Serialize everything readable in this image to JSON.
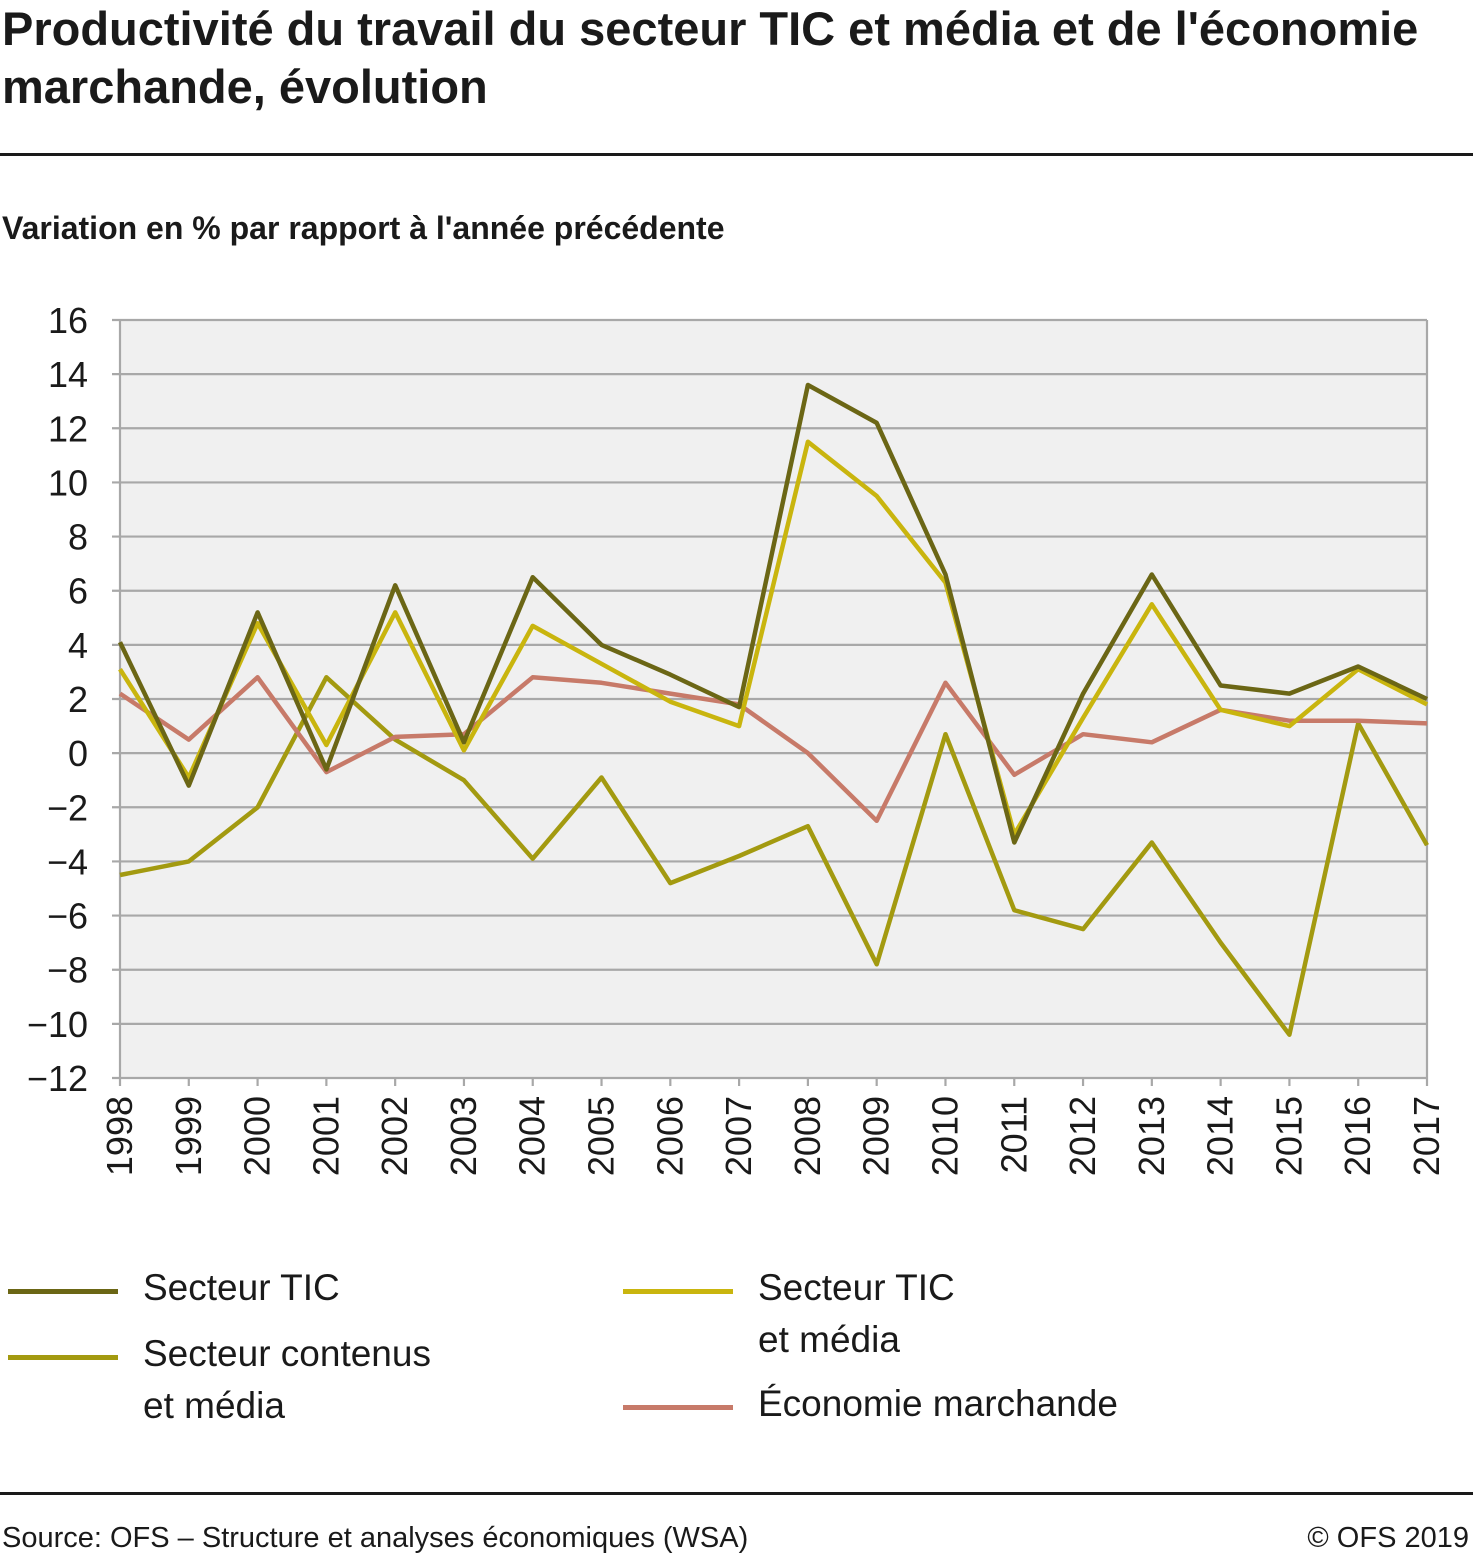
{
  "title": "Productivité du travail du secteur TIC et média et de l'économie marchande, évolution",
  "subtitle": "Variation en % par rapport à l'année précédente",
  "source": "Source: OFS – Structure et analyses économiques (WSA)",
  "copyright": "© OFS 2019",
  "chart_data": {
    "type": "line",
    "x": [
      "1998",
      "1999",
      "2000",
      "2001",
      "2002",
      "2003",
      "2004",
      "2005",
      "2006",
      "2007",
      "2008",
      "2009",
      "2010",
      "2011",
      "2012",
      "2013",
      "2014",
      "2015",
      "2016",
      "2017"
    ],
    "ylim": [
      -12,
      16
    ],
    "yticks": [
      "16",
      "14",
      "12",
      "10",
      "8",
      "6",
      "4",
      "2",
      "0",
      "−2",
      "−4",
      "−6",
      "−8",
      "−10",
      "−12"
    ],
    "ytick_values": [
      16,
      14,
      12,
      10,
      8,
      6,
      4,
      2,
      0,
      -2,
      -4,
      -6,
      -8,
      -10,
      -12
    ],
    "grid": true,
    "background": "#f0f0f0",
    "series": [
      {
        "name": "Secteur TIC",
        "color": "#6b6615",
        "values": [
          4.1,
          -1.2,
          5.2,
          -0.6,
          6.2,
          0.4,
          6.5,
          4.0,
          2.9,
          1.7,
          13.6,
          12.2,
          6.6,
          -3.3,
          2.2,
          6.6,
          2.5,
          2.2,
          3.2,
          2.0
        ]
      },
      {
        "name": "Secteur TIC et média",
        "color": "#c9b50e",
        "values": [
          3.1,
          -0.9,
          4.8,
          0.3,
          5.2,
          0.1,
          4.7,
          3.3,
          1.9,
          1.0,
          11.5,
          9.5,
          6.3,
          -3.0,
          1.3,
          5.5,
          1.6,
          1.0,
          3.1,
          1.8
        ]
      },
      {
        "name": "Secteur contenus et média",
        "color": "#a39a10",
        "values": [
          -4.5,
          -4.0,
          -2.0,
          2.8,
          0.5,
          -1.0,
          -3.9,
          -0.9,
          -4.8,
          -3.8,
          -2.7,
          -7.8,
          0.7,
          -5.8,
          -6.5,
          -3.3,
          -7.0,
          -10.4,
          1.1,
          -3.4
        ]
      },
      {
        "name": "Économie marchande",
        "color": "#c77a69",
        "values": [
          2.2,
          0.5,
          2.8,
          -0.7,
          0.6,
          0.7,
          2.8,
          2.6,
          2.2,
          1.8,
          0.0,
          -2.5,
          2.6,
          -0.8,
          0.7,
          0.4,
          1.6,
          1.2,
          1.2,
          1.1
        ]
      }
    ]
  },
  "legend": [
    {
      "label": "Secteur TIC",
      "color": "#6b6615"
    },
    {
      "label": "Secteur contenus et média",
      "color": "#a39a10"
    },
    {
      "label": "Secteur TIC et média",
      "color": "#c9b50e"
    },
    {
      "label": "Économie marchande",
      "color": "#c77a69"
    }
  ]
}
